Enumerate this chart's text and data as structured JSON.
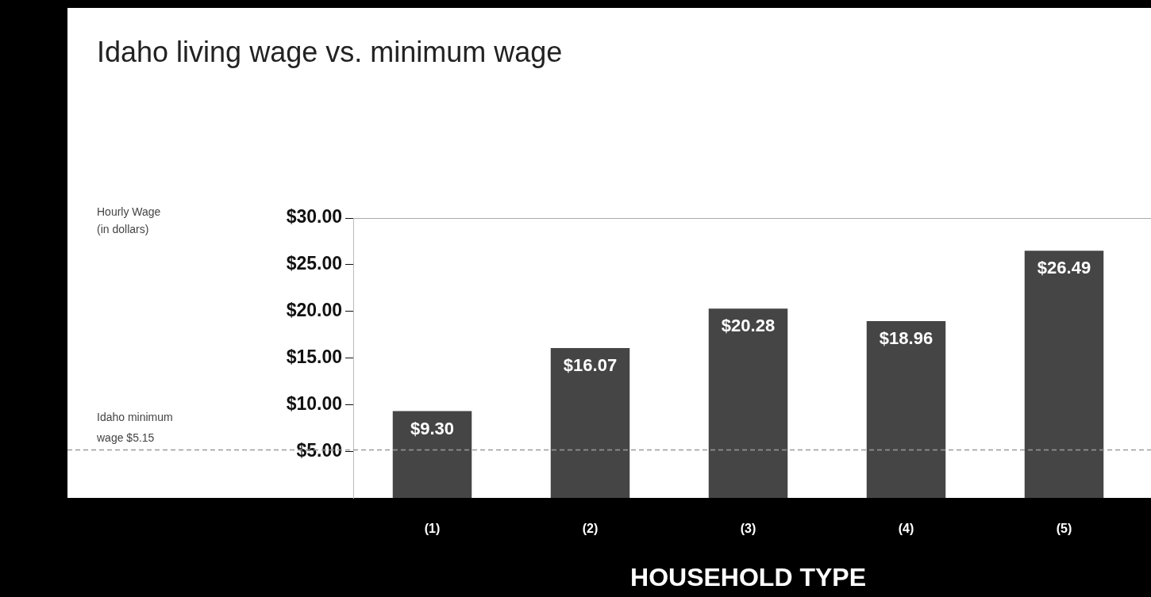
{
  "chart_data": {
    "type": "bar",
    "title": "Idaho living wage vs. minimum wage",
    "annotations": [
      "Hourly Wage (in dollars)"
    ],
    "xlabel": "HOUSEHOLD TYPE",
    "categories": [
      "(1)",
      "(2)",
      "(3)",
      "(4)",
      "(5)"
    ],
    "values": [
      9.3,
      16.07,
      20.28,
      18.96,
      26.49
    ],
    "value_labels": [
      "$9.30",
      "$16.07",
      "$20.28",
      "$18.96",
      "$26.49"
    ],
    "color": "#454545",
    "ylim": [
      0,
      30
    ],
    "yticks": [
      {
        "value": 5,
        "label": "$5.00"
      },
      {
        "value": 10,
        "label": "$10.00"
      },
      {
        "value": 15,
        "label": "$15.00"
      },
      {
        "value": 20,
        "label": "$20.00"
      },
      {
        "value": 25,
        "label": "$25.00"
      },
      {
        "value": 30,
        "label": "$30.00"
      }
    ],
    "ref_lines": [
      {
        "axis": "y",
        "value": 5.15,
        "label": "Idaho minimum wage $5.15",
        "color": "#9a9a9a",
        "line_style": "dashed"
      }
    ],
    "legend": false
  }
}
